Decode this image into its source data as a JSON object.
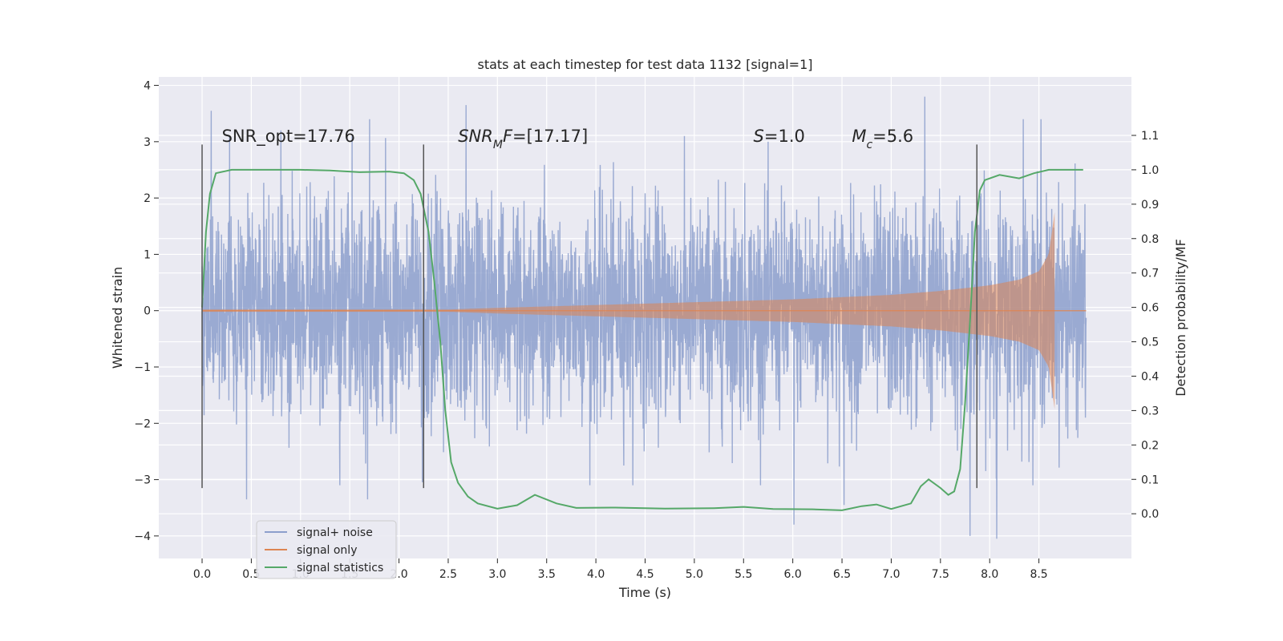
{
  "chart_data": {
    "type": "line",
    "title": "stats at each timestep for test data 1132 [signal=1]",
    "xlabel": "Time (s)",
    "ylabel": "Whitened strain",
    "y2label": "Detection probability/MF",
    "xlim": [
      -0.44,
      9.44
    ],
    "ylim": [
      -4.4,
      4.15
    ],
    "y2lim": [
      -0.13,
      1.27
    ],
    "xticks": [
      0.0,
      0.5,
      1.0,
      1.5,
      2.0,
      2.5,
      3.0,
      3.5,
      4.0,
      4.5,
      5.0,
      5.5,
      6.0,
      6.5,
      7.0,
      7.5,
      8.0,
      8.5
    ],
    "yticks": [
      -4,
      -3,
      -2,
      -1,
      0,
      1,
      2,
      3,
      4
    ],
    "y2ticks": [
      0.0,
      0.1,
      0.2,
      0.3,
      0.4,
      0.5,
      0.6,
      0.7,
      0.8,
      0.9,
      1.0,
      1.1
    ],
    "grid": true,
    "legend_position": "lower-left",
    "annotations": [
      {
        "x": 0.2,
        "y": 3.0,
        "parts": [
          {
            "t": "SNR_opt=17.76"
          }
        ]
      },
      {
        "x": 2.6,
        "y": 3.0,
        "parts": [
          {
            "t": "SNR",
            "i": true
          },
          {
            "t": "M",
            "i": true,
            "sub": true
          },
          {
            "t": "F",
            "i": true
          },
          {
            "t": "=[17.17]"
          }
        ]
      },
      {
        "x": 5.6,
        "y": 3.0,
        "parts": [
          {
            "t": "S",
            "i": true
          },
          {
            "t": "=1.0"
          }
        ]
      },
      {
        "x": 6.6,
        "y": 3.0,
        "parts": [
          {
            "t": "M",
            "i": true
          },
          {
            "t": "c",
            "i": true,
            "sub": true
          },
          {
            "t": "=5.6"
          }
        ]
      }
    ],
    "vlines": [
      {
        "x": 0.0,
        "y": [
          -3.15,
          2.95
        ]
      },
      {
        "x": 2.25,
        "y": [
          -3.15,
          2.95
        ]
      },
      {
        "x": 7.87,
        "y": [
          -3.15,
          2.95
        ]
      }
    ],
    "series": [
      {
        "name": "signal+ noise",
        "kind": "noise",
        "color": "#8c9fcc",
        "x_range": [
          0.0,
          8.98
        ],
        "envelope": [
          [
            0.0,
            2.2,
            -2.3
          ],
          [
            8.98,
            2.2,
            -2.3
          ]
        ],
        "notable_spikes": [
          [
            0.09,
            3.55
          ],
          [
            0.8,
            3.2
          ],
          [
            1.7,
            3.4
          ],
          [
            2.68,
            3.65
          ],
          [
            7.34,
            3.8
          ],
          [
            8.34,
            3.4
          ],
          [
            8.52,
            3.4
          ],
          [
            0.45,
            -3.35
          ],
          [
            1.68,
            -3.35
          ],
          [
            6.01,
            -3.8
          ],
          [
            7.8,
            -4.0
          ],
          [
            8.07,
            -4.05
          ],
          [
            6.52,
            -3.45
          ]
        ]
      },
      {
        "name": "signal only",
        "kind": "chirp",
        "color": "#dd8452",
        "x_range": [
          0.0,
          8.98
        ],
        "merger_time": 8.66,
        "amplitude_points": [
          [
            0.0,
            0.02
          ],
          [
            2.5,
            0.02
          ],
          [
            3.0,
            0.05
          ],
          [
            4.0,
            0.1
          ],
          [
            5.0,
            0.15
          ],
          [
            6.0,
            0.2
          ],
          [
            7.0,
            0.28
          ],
          [
            7.5,
            0.35
          ],
          [
            8.0,
            0.45
          ],
          [
            8.3,
            0.55
          ],
          [
            8.5,
            0.7
          ],
          [
            8.6,
            1.0
          ],
          [
            8.66,
            1.75
          ]
        ]
      },
      {
        "name": "signal statistics",
        "kind": "line",
        "axis": "y2",
        "color": "#55a868",
        "points": [
          [
            0.0,
            0.6
          ],
          [
            0.04,
            0.82
          ],
          [
            0.08,
            0.93
          ],
          [
            0.14,
            0.99
          ],
          [
            0.3,
            1.0
          ],
          [
            1.0,
            1.0
          ],
          [
            1.3,
            0.998
          ],
          [
            1.6,
            0.993
          ],
          [
            1.9,
            0.995
          ],
          [
            2.05,
            0.99
          ],
          [
            2.15,
            0.97
          ],
          [
            2.22,
            0.93
          ],
          [
            2.3,
            0.82
          ],
          [
            2.36,
            0.67
          ],
          [
            2.42,
            0.5
          ],
          [
            2.47,
            0.3
          ],
          [
            2.53,
            0.15
          ],
          [
            2.6,
            0.09
          ],
          [
            2.7,
            0.05
          ],
          [
            2.8,
            0.03
          ],
          [
            3.0,
            0.015
          ],
          [
            3.2,
            0.025
          ],
          [
            3.38,
            0.055
          ],
          [
            3.6,
            0.03
          ],
          [
            3.8,
            0.017
          ],
          [
            4.2,
            0.018
          ],
          [
            4.7,
            0.015
          ],
          [
            5.2,
            0.016
          ],
          [
            5.5,
            0.02
          ],
          [
            5.8,
            0.014
          ],
          [
            6.2,
            0.013
          ],
          [
            6.5,
            0.01
          ],
          [
            6.7,
            0.022
          ],
          [
            6.85,
            0.027
          ],
          [
            7.0,
            0.014
          ],
          [
            7.2,
            0.03
          ],
          [
            7.3,
            0.08
          ],
          [
            7.38,
            0.1
          ],
          [
            7.5,
            0.075
          ],
          [
            7.58,
            0.055
          ],
          [
            7.64,
            0.065
          ],
          [
            7.7,
            0.13
          ],
          [
            7.75,
            0.32
          ],
          [
            7.8,
            0.56
          ],
          [
            7.85,
            0.82
          ],
          [
            7.9,
            0.94
          ],
          [
            7.95,
            0.97
          ],
          [
            8.1,
            0.985
          ],
          [
            8.3,
            0.975
          ],
          [
            8.45,
            0.99
          ],
          [
            8.6,
            1.0
          ],
          [
            8.95,
            1.0
          ]
        ]
      }
    ]
  }
}
